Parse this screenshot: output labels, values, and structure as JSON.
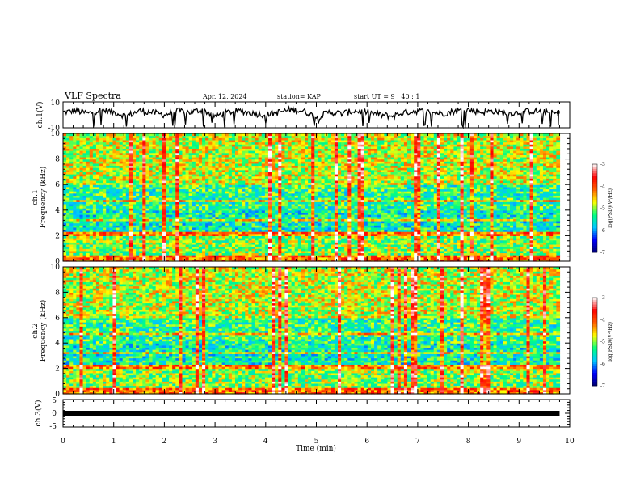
{
  "header": {
    "title": "VLF Spectra",
    "date": "Apr. 12, 2024",
    "station": "station= KAP",
    "start": "start  UT  =   9 : 40 : 1"
  },
  "chart_data": [
    {
      "type": "line",
      "panel": "ch1-waveform",
      "ylabel": "ch.1(V)",
      "ylim": [
        -10,
        10
      ],
      "ytick_labels": [
        "10",
        "-10"
      ],
      "xlim": [
        0,
        10
      ],
      "series": [
        {
          "color": "#000000",
          "x": [
            0,
            0.25,
            0.5,
            0.75,
            1,
            1.25,
            1.5,
            1.75,
            2,
            2.25,
            2.5,
            2.75,
            3,
            3.25,
            3.5,
            3.75,
            4,
            4.25,
            4.5,
            4.75,
            5,
            5.25,
            5.5,
            5.75,
            6,
            6.25,
            6.5,
            6.75,
            7,
            7.25,
            7.5,
            7.75,
            8,
            8.25,
            8.5,
            8.75,
            9,
            9.25,
            9.5,
            9.75,
            9.8
          ],
          "values": [
            2,
            3,
            1,
            4,
            2,
            -1,
            3,
            2,
            0,
            3,
            2,
            4,
            -1,
            2,
            3,
            1,
            0,
            2,
            4,
            3,
            -2,
            2,
            1,
            3,
            2,
            0,
            -1,
            2,
            3,
            2,
            1,
            3,
            4,
            2,
            3,
            1,
            2,
            3,
            2,
            1,
            2
          ]
        }
      ]
    },
    {
      "type": "heatmap",
      "panel": "ch1-spectrogram",
      "ylabel": "ch.1\nFrequency (kHz)",
      "ylim": [
        0,
        10
      ],
      "ytick_labels": [
        "0",
        "2",
        "4",
        "6",
        "8",
        "10"
      ],
      "xlim": [
        0,
        10
      ],
      "data_xmax": 9.8,
      "colorbar": {
        "label": "log(PSD)(V²/Hz)",
        "range": [
          -7,
          -3
        ],
        "ticks": [
          "-3",
          "-4",
          "-5",
          "-6",
          "-7"
        ]
      }
    },
    {
      "type": "heatmap",
      "panel": "ch2-spectrogram",
      "ylabel": "ch.2\nFrequency (kHz)",
      "ylim": [
        0,
        10
      ],
      "ytick_labels": [
        "0",
        "2",
        "4",
        "6",
        "8",
        "10"
      ],
      "xlim": [
        0,
        10
      ],
      "data_xmax": 9.8,
      "colorbar": {
        "label": "log(PSD)(V²/Hz)",
        "range": [
          -7,
          -3
        ],
        "ticks": [
          "-3",
          "-4",
          "-5",
          "-6",
          "-7"
        ]
      }
    },
    {
      "type": "line",
      "panel": "ch3-waveform",
      "ylabel": "ch.3(V)",
      "ylim": [
        -5,
        5
      ],
      "ytick_labels": [
        "5",
        "0",
        "-5"
      ],
      "xlim": [
        0,
        10
      ],
      "series": [
        {
          "color": "#000000",
          "x": [
            0,
            9.8
          ],
          "values": [
            0,
            0
          ]
        }
      ]
    }
  ],
  "xaxis": {
    "label": "Time (min)",
    "tick_labels": [
      "0",
      "1",
      "2",
      "3",
      "4",
      "5",
      "6",
      "7",
      "8",
      "9",
      "10"
    ]
  },
  "colors": {
    "colormap": [
      "#000070",
      "#0000ff",
      "#00c8ff",
      "#00ff80",
      "#ffff00",
      "#ff6000",
      "#ff0000",
      "#ffffff"
    ]
  }
}
